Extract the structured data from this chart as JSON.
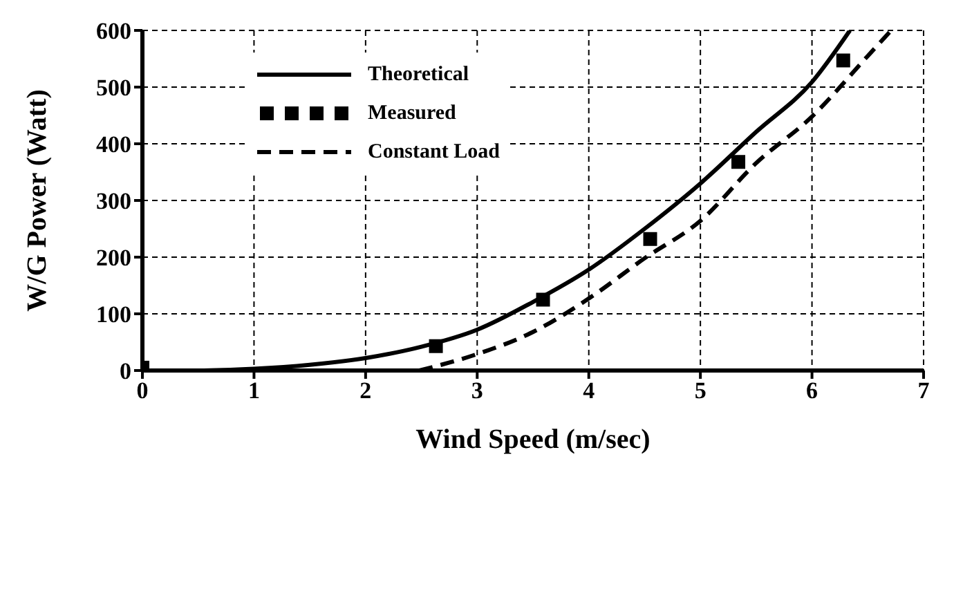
{
  "chart_data": {
    "type": "line",
    "xlabel": "Wind Speed  (m/sec)",
    "ylabel": "W/G Power (Watt)",
    "xlim": [
      0,
      7
    ],
    "xticks": [
      0,
      1,
      2,
      3,
      4,
      5,
      6,
      7
    ],
    "ylim": [
      0,
      600
    ],
    "yticks": [
      0,
      100,
      200,
      300,
      400,
      500,
      600
    ],
    "grid": true,
    "legend": "top left",
    "series": [
      {
        "name": "Theoretical",
        "color": "#000000",
        "line_style": "solid",
        "marker": "none",
        "x": [
          0,
          0.5,
          1,
          1.5,
          2,
          2.5,
          3,
          3.5,
          4,
          4.5,
          5,
          5.5,
          6,
          6.34
        ],
        "values": [
          0,
          0,
          3,
          10,
          22,
          42,
          72,
          121,
          178,
          250,
          330,
          421,
          509,
          600
        ]
      },
      {
        "name": "Measured",
        "type": "scatter",
        "color": "#000000",
        "marker": "square",
        "x": [
          0,
          2.63,
          3.59,
          4.55,
          5.34,
          6.28
        ],
        "values": [
          5,
          43,
          125,
          232,
          368,
          547
        ]
      },
      {
        "name": "Constant Load",
        "color": "#000000",
        "line_style": "dashed",
        "marker": "none",
        "x": [
          2.48,
          3,
          3.5,
          4,
          4.5,
          5,
          5.5,
          6,
          6.5,
          6.71
        ],
        "values": [
          0,
          29,
          68,
          127,
          198,
          264,
          366,
          448,
          555,
          600
        ]
      }
    ]
  }
}
